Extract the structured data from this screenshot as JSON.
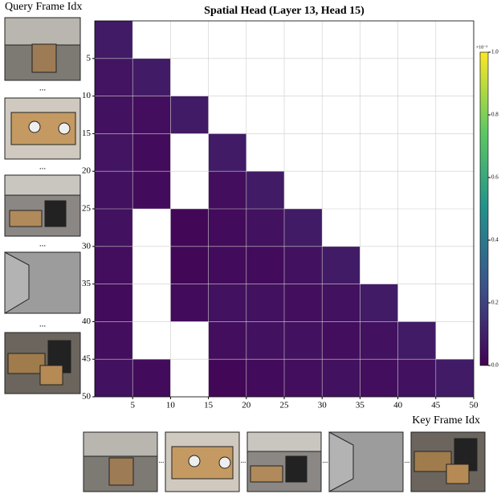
{
  "chart_data": {
    "type": "heatmap",
    "title": "Spatial Head (Layer 13, Head 15)",
    "xlabel": "Key Frame Idx",
    "ylabel": "Query Frame Idx",
    "separator": "...",
    "xlim": [
      0,
      50
    ],
    "ylim": [
      0,
      50
    ],
    "y_inverted": true,
    "xticks": [
      5,
      10,
      15,
      20,
      25,
      30,
      35,
      40,
      45,
      50
    ],
    "yticks": [
      5,
      10,
      15,
      20,
      25,
      30,
      35,
      40,
      45,
      50
    ],
    "grid": true,
    "colormap": "viridis",
    "values": [
      [
        0.08,
        null,
        null,
        null,
        null,
        null,
        null,
        null,
        null,
        null
      ],
      [
        0.06,
        0.08,
        null,
        null,
        null,
        null,
        null,
        null,
        null,
        null
      ],
      [
        0.05,
        0.04,
        0.08,
        null,
        null,
        null,
        null,
        null,
        null,
        null
      ],
      [
        0.06,
        0.03,
        null,
        0.08,
        null,
        null,
        null,
        null,
        null,
        null
      ],
      [
        0.05,
        0.03,
        null,
        0.04,
        0.08,
        null,
        null,
        null,
        null,
        null
      ],
      [
        0.05,
        null,
        0.02,
        0.03,
        0.05,
        0.08,
        null,
        null,
        null,
        null
      ],
      [
        0.04,
        null,
        0.02,
        0.03,
        0.03,
        0.05,
        0.08,
        null,
        null,
        null
      ],
      [
        0.03,
        null,
        0.03,
        0.05,
        0.05,
        0.04,
        0.05,
        0.08,
        null,
        null
      ],
      [
        0.04,
        null,
        null,
        0.04,
        0.05,
        0.05,
        0.04,
        0.05,
        0.08,
        null
      ],
      [
        0.05,
        0.03,
        null,
        0.02,
        0.03,
        0.04,
        0.05,
        0.04,
        0.05,
        0.08
      ]
    ],
    "colorbar": {
      "label": "×10⁻³",
      "lim": [
        0,
        1
      ],
      "ticks": [
        {
          "value": 0,
          "label": "0.0"
        },
        {
          "value": 0.2,
          "label": "0.2"
        },
        {
          "value": 0.4,
          "label": "0.4"
        },
        {
          "value": 0.6,
          "label": "0.6"
        },
        {
          "value": 0.8,
          "label": "0.8"
        },
        {
          "value": 1,
          "label": "1.0"
        }
      ]
    }
  }
}
